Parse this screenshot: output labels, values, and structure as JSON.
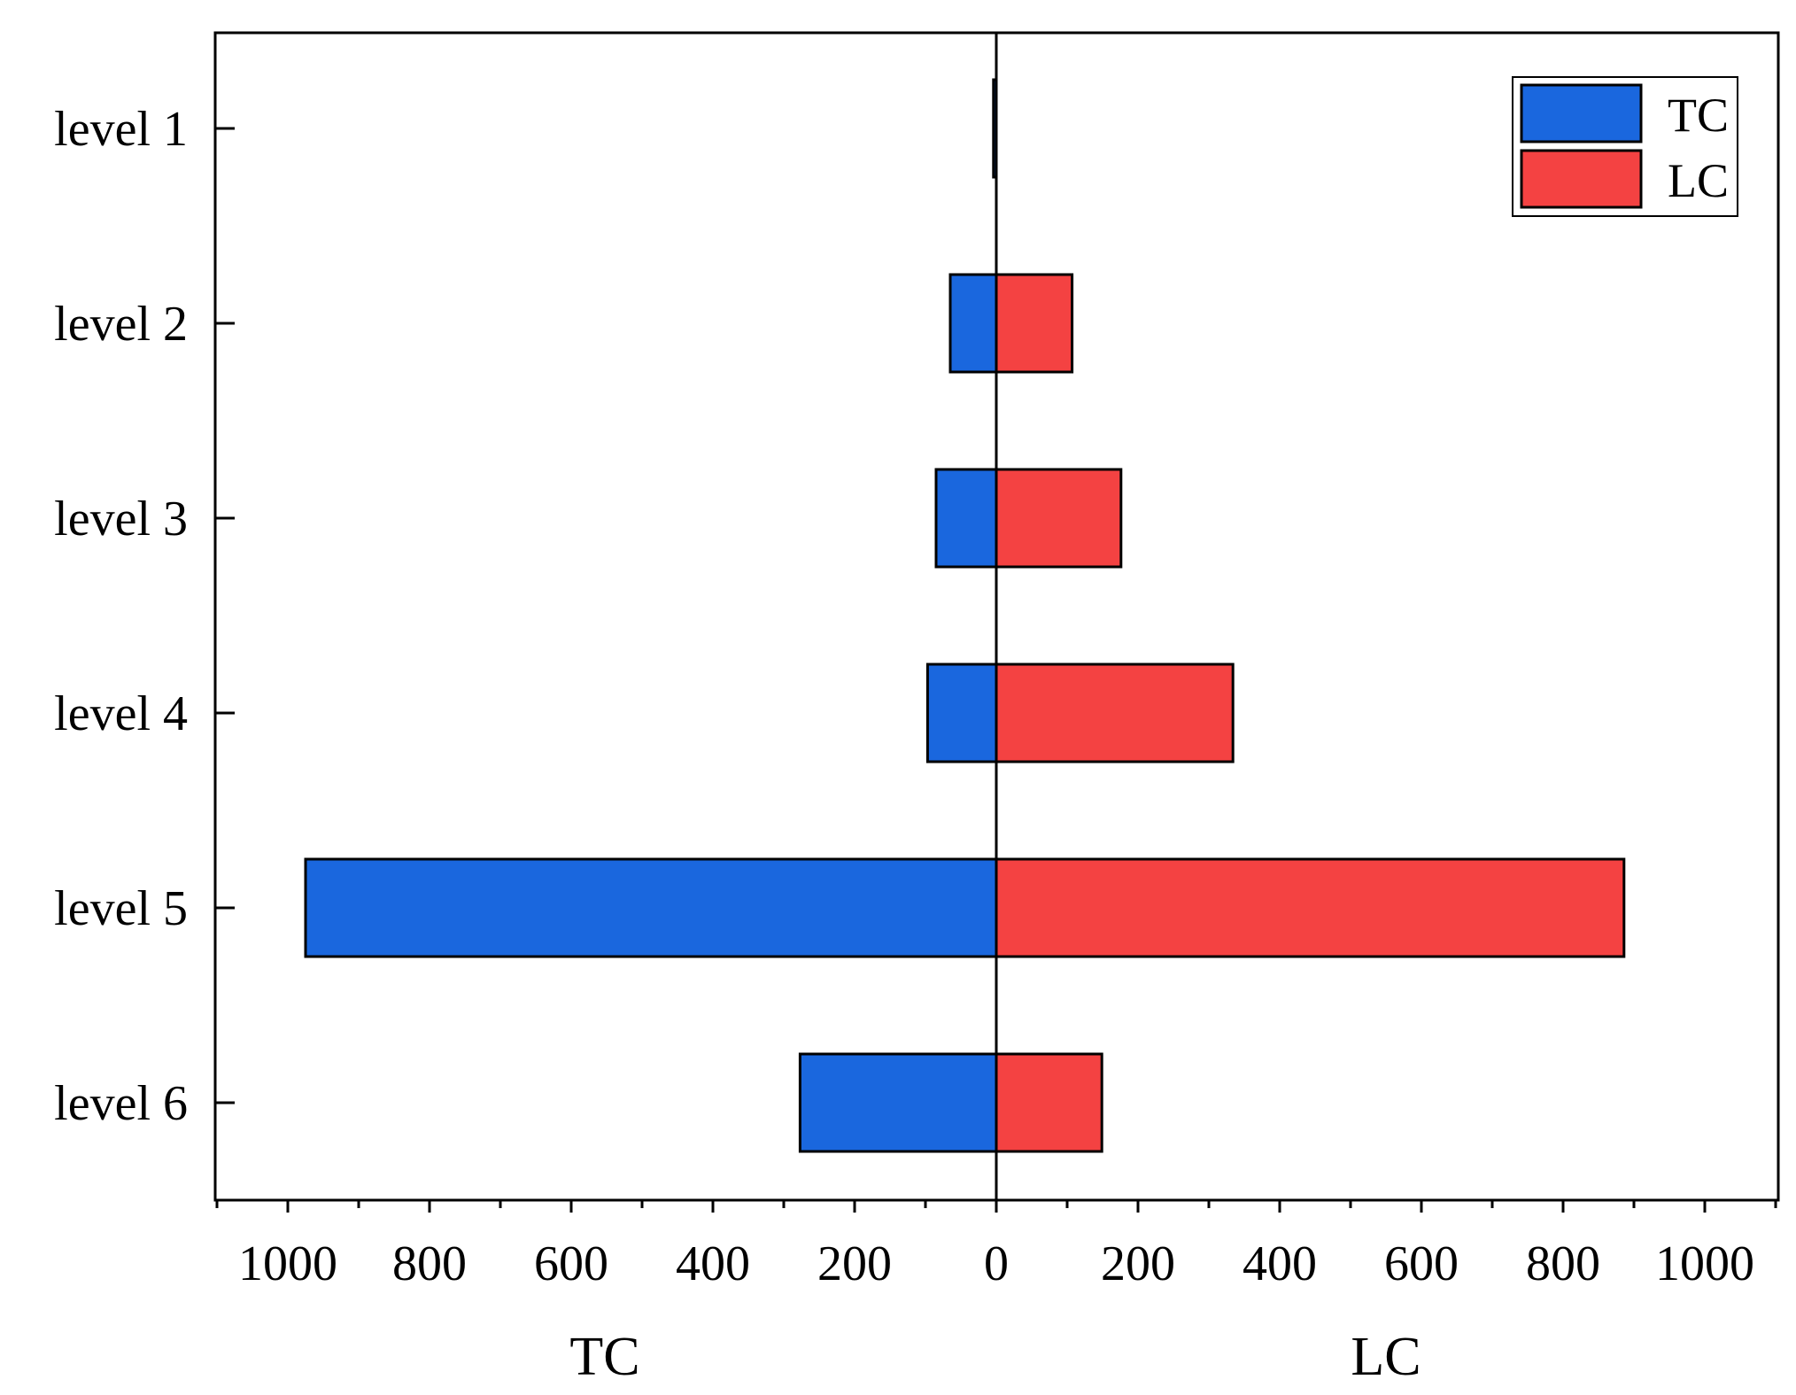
{
  "chart_data": {
    "type": "bar",
    "orientation": "horizontal-diverging",
    "categories": [
      "level 1",
      "level 2",
      "level 3",
      "level 4",
      "level 5",
      "level 6"
    ],
    "series": [
      {
        "name": "TC",
        "side": "left",
        "values": [
          4,
          65,
          85,
          97,
          975,
          277
        ]
      },
      {
        "name": "LC",
        "side": "right",
        "values": [
          0,
          107,
          176,
          334,
          886,
          149
        ]
      }
    ],
    "xlim": [
      -1100,
      1100
    ],
    "x_ticks": [
      -1000,
      -800,
      -600,
      -400,
      -200,
      0,
      200,
      400,
      600,
      800,
      1000
    ],
    "x_tick_labels": [
      "1000",
      "800",
      "600",
      "400",
      "200",
      "0",
      "200",
      "400",
      "600",
      "800",
      "1000"
    ],
    "xlabel_left": "TC",
    "xlabel_right": "LC",
    "legend": {
      "position": "top-right",
      "entries": [
        "TC",
        "LC"
      ]
    },
    "colors": {
      "TC": "#1a67de",
      "LC": "#f44242"
    },
    "grid": false
  }
}
